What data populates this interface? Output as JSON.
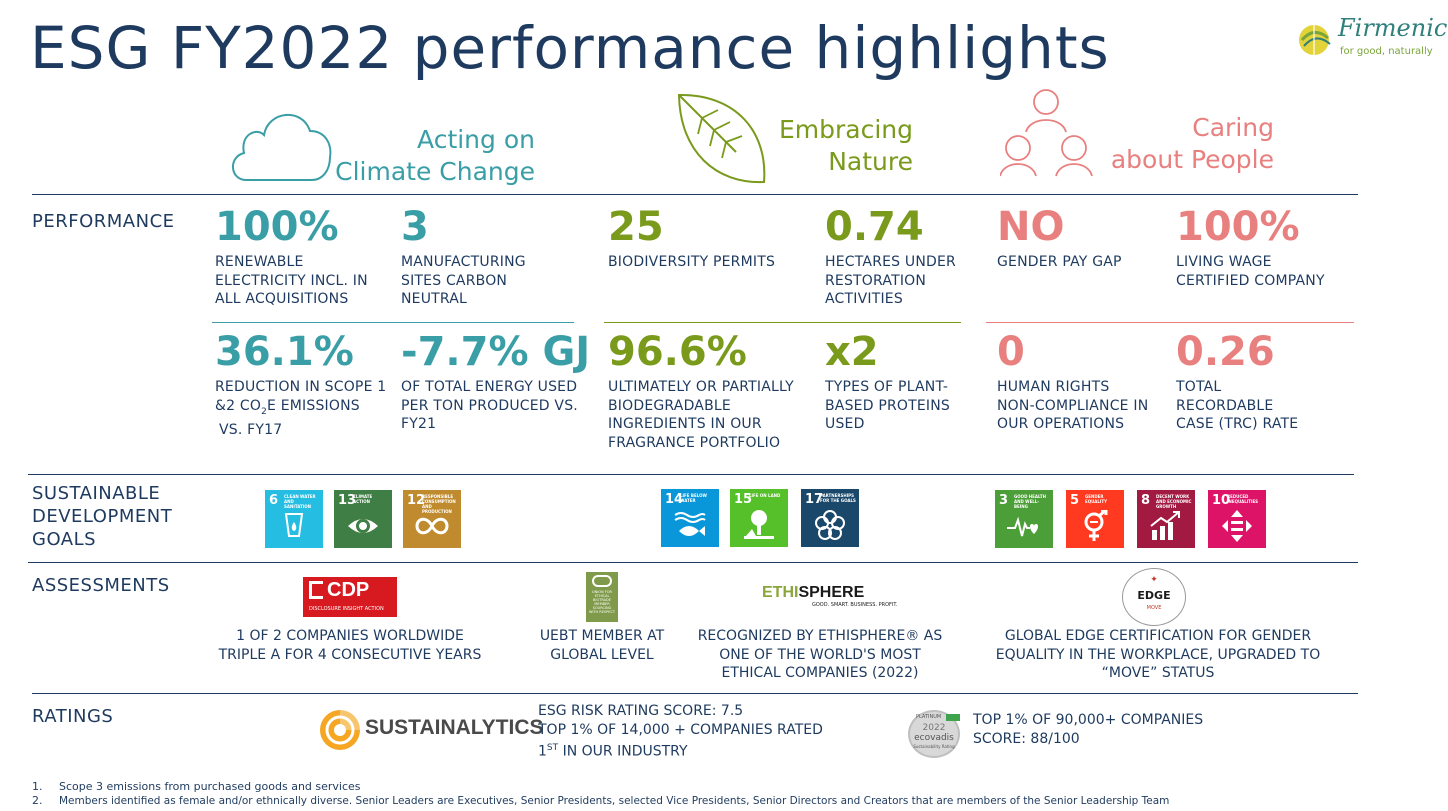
{
  "title": "ESG FY2022 performance highlights",
  "logo": {
    "name": "Firmenich",
    "tagline": "for good, naturally"
  },
  "themes": {
    "climate": {
      "line1": "Acting on",
      "line2": "Climate Change",
      "icon": "cloud-icon",
      "color": "#3a9ea6"
    },
    "nature": {
      "line1": "Embracing",
      "line2": "Nature",
      "icon": "leaf-icon",
      "color": "#7a9a1c"
    },
    "people": {
      "line1": "Caring",
      "line2": "about People",
      "icon": "people-icon",
      "color": "#e8807f"
    }
  },
  "sections": {
    "performance": "PERFORMANCE",
    "sdg": [
      "SUSTAINABLE",
      "DEVELOPMENT",
      "GOALS"
    ],
    "assessments": "ASSESSMENTS",
    "ratings": "RATINGS"
  },
  "metrics": {
    "m1": {
      "value": "100%",
      "desc": [
        "RENEWABLE",
        "ELECTRICITY INCL. IN",
        "ALL ACQUISITIONS"
      ]
    },
    "m2": {
      "value": "3",
      "desc": [
        "MANUFACTURING",
        "SITES CARBON",
        "NEUTRAL"
      ]
    },
    "m3": {
      "value": "36.1%",
      "desc": [
        "REDUCTION IN SCOPE 1",
        "&2 CO",
        "2",
        "E EMISSIONS",
        "VS. FY17"
      ]
    },
    "m4": {
      "value": "-7.7% GJ",
      "desc": [
        "OF TOTAL ENERGY USED",
        "PER TON PRODUCED VS.",
        "FY21"
      ]
    },
    "m5": {
      "value": "25",
      "desc": [
        "BIODIVERSITY PERMITS"
      ]
    },
    "m6": {
      "value": "0.74",
      "desc": [
        "HECTARES UNDER",
        "RESTORATION",
        "ACTIVITIES"
      ]
    },
    "m7": {
      "value": "96.6%",
      "desc": [
        "ULTIMATELY OR PARTIALLY",
        "BIODEGRADABLE",
        "INGREDIENTS IN OUR",
        "FRAGRANCE PORTFOLIO"
      ]
    },
    "m8": {
      "value": "x2",
      "desc": [
        "TYPES OF PLANT-",
        "BASED PROTEINS",
        "USED"
      ]
    },
    "m9": {
      "value": "NO",
      "desc": [
        "GENDER PAY GAP"
      ]
    },
    "m10": {
      "value": "100%",
      "desc": [
        "LIVING WAGE",
        "CERTIFIED COMPANY"
      ]
    },
    "m11": {
      "value": "0",
      "desc": [
        "HUMAN RIGHTS",
        "NON-COMPLIANCE IN",
        "OUR OPERATIONS"
      ]
    },
    "m12": {
      "value": "0.26",
      "desc": [
        "TOTAL",
        "RECORDABLE",
        "CASE (TRC) RATE"
      ]
    }
  },
  "sdgs": [
    {
      "num": "6",
      "label": "CLEAN WATER AND SANITATION",
      "color": "#26bde2",
      "icon": "water-drop-icon"
    },
    {
      "num": "13",
      "label": "CLIMATE ACTION",
      "color": "#3f7e44",
      "icon": "eye-globe-icon"
    },
    {
      "num": "12",
      "label": "RESPONSIBLE CONSUMPTION AND PRODUCTION",
      "color": "#bf8b2e",
      "icon": "infinity-icon"
    },
    {
      "num": "14",
      "label": "LIFE BELOW WATER",
      "color": "#0a97d9",
      "icon": "fish-icon"
    },
    {
      "num": "15",
      "label": "LIFE ON LAND",
      "color": "#56c02b",
      "icon": "tree-icon"
    },
    {
      "num": "17",
      "label": "PARTNERSHIPS FOR THE GOALS",
      "color": "#19486a",
      "icon": "flower-icon"
    },
    {
      "num": "3",
      "label": "GOOD HEALTH AND WELL-BEING",
      "color": "#4c9f38",
      "icon": "heartbeat-icon"
    },
    {
      "num": "5",
      "label": "GENDER EQUALITY",
      "color": "#ff3a21",
      "icon": "gender-icon"
    },
    {
      "num": "8",
      "label": "DECENT WORK AND ECONOMIC GROWTH",
      "color": "#a21942",
      "icon": "growth-chart-icon"
    },
    {
      "num": "10",
      "label": "REDUCED INEQUALITIES",
      "color": "#dd1367",
      "icon": "equality-icon"
    }
  ],
  "assessments": {
    "cdp": {
      "logo": "CDP",
      "logo_sub": "DISCLOSURE INSIGHT ACTION",
      "text": [
        "1 OF 2 COMPANIES WORLDWIDE",
        "TRIPLE A FOR 4 CONSECUTIVE YEARS"
      ]
    },
    "uebt": {
      "logo": [
        "UNION FOR",
        "ETHICAL",
        "BIOTRADE",
        "MEMBER",
        "SOURCING",
        "WITH RESPECT"
      ],
      "text": [
        "UEBT MEMBER AT",
        "GLOBAL LEVEL"
      ]
    },
    "ethisphere": {
      "logo_a": "ETHI",
      "logo_b": "SPHERE",
      "logo_sub": "GOOD. SMART. BUSINESS. PROFIT.",
      "text": [
        "RECOGNIZED BY ETHISPHERE® AS",
        "ONE OF THE WORLD'S MOST",
        "ETHICAL COMPANIES (2022)"
      ]
    },
    "edge": {
      "logo": "EDGE",
      "logo_sub": "MOVE",
      "text": [
        "GLOBAL EDGE CERTIFICATION FOR GENDER",
        "EQUALITY IN THE WORKPLACE, UPGRADED TO",
        "“MOVE” STATUS"
      ]
    }
  },
  "ratings": {
    "sustainalytics": {
      "logo": "SUSTAINALYTICS",
      "line1": "ESG RISK RATING SCORE: 7.5",
      "line2": "TOP 1% OF 14,000 + COMPANIES RATED",
      "line3a": "1",
      "line3sup": "ST",
      "line3b": " IN OUR INDUSTRY"
    },
    "ecovadis": {
      "badge_top": "PLATINUM",
      "badge_year": "2022",
      "badge_name": "ecovadis",
      "badge_sub": "Sustainability Rating",
      "line1": "TOP 1% OF 90,000+ COMPANIES",
      "line2": "SCORE: 88/100"
    }
  },
  "footnotes": [
    {
      "num": "1.",
      "text": "Scope 3 emissions from purchased goods and services"
    },
    {
      "num": "2.",
      "text": "Members identified as female and/or ethnically diverse. Senior Leaders are Executives, Senior Presidents, selected Vice Presidents, Senior Directors and Creators that are members of the Senior Leadership Team"
    }
  ]
}
